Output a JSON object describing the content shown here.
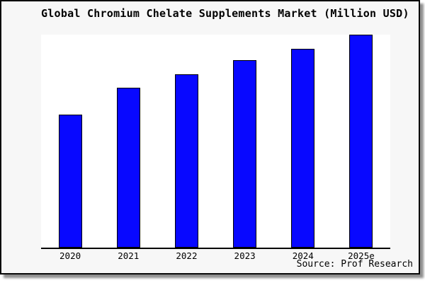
{
  "chart_data": {
    "type": "bar",
    "title": "Global Chromium Chelate Supplements Market (Million USD)",
    "categories": [
      "2020",
      "2021",
      "2022",
      "2023",
      "2024",
      "2025e"
    ],
    "values": [
      62.5,
      75,
      81.5,
      88,
      93.5,
      100
    ],
    "values_scale": "relative index (y-axis unlabeled in chart; 2025e = 100)",
    "xlabel": "",
    "ylabel": "",
    "ylim": [
      0,
      100
    ],
    "grid": false,
    "legend": false,
    "y_axis_ticks_shown": false,
    "source": "Source: Prof Research",
    "colors": {
      "bar_fill": "#0808ff",
      "bar_edge": "#000000",
      "plot_background": "#ffffff",
      "frame_background": "#f7f7f7",
      "frame_border": "#0a0a0a",
      "title_text": "#000000"
    }
  }
}
